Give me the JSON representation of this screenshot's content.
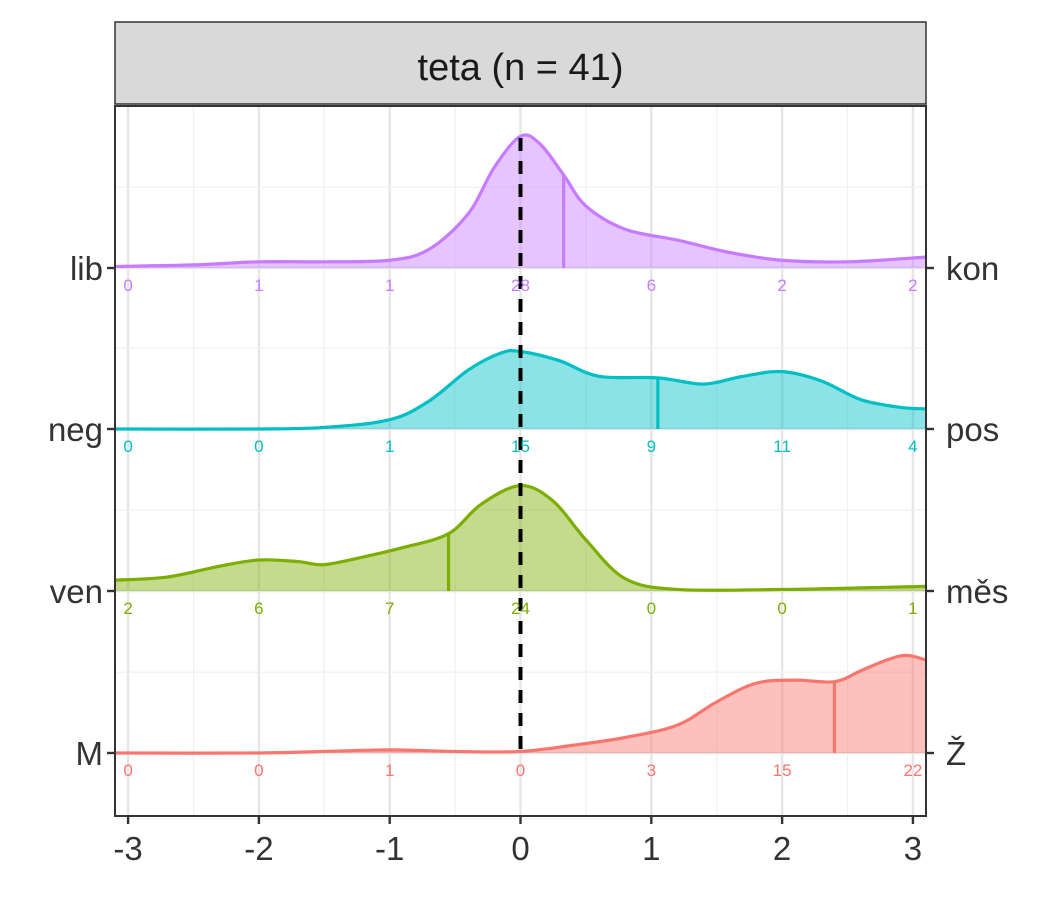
{
  "panel": {
    "title": "teta (n = 41)"
  },
  "chart_data": {
    "type": "area",
    "title": "",
    "xlabel": "",
    "ylabel": "",
    "xlim": [
      -3.1,
      3.1
    ],
    "x_ticks": [
      -3,
      -2,
      -1,
      0,
      1,
      2,
      3
    ],
    "x_tick_labels": [
      "-3",
      "-2",
      "-1",
      "0",
      "1",
      "2",
      "3"
    ],
    "count_positions": [
      -3,
      -2,
      -1,
      0,
      1,
      2,
      3
    ],
    "reference_line_x": 0,
    "grid": true,
    "series": [
      {
        "left_label": "lib",
        "right_label": "kon",
        "color": "#C77CFF",
        "counts": [
          "0",
          "1",
          "1",
          "28",
          "6",
          "2",
          "2"
        ],
        "marker_x": 0.33,
        "density": [
          [
            -3.1,
            0.01
          ],
          [
            -2.5,
            0.02
          ],
          [
            -2,
            0.04
          ],
          [
            -1.5,
            0.04
          ],
          [
            -1,
            0.05
          ],
          [
            -0.7,
            0.12
          ],
          [
            -0.4,
            0.35
          ],
          [
            -0.2,
            0.65
          ],
          [
            0,
            0.85
          ],
          [
            0.15,
            0.8
          ],
          [
            0.33,
            0.6
          ],
          [
            0.5,
            0.4
          ],
          [
            0.8,
            0.25
          ],
          [
            1.2,
            0.18
          ],
          [
            1.6,
            0.1
          ],
          [
            2,
            0.05
          ],
          [
            2.5,
            0.04
          ],
          [
            3.1,
            0.07
          ]
        ]
      },
      {
        "left_label": "neg",
        "right_label": "pos",
        "color": "#00BFC4",
        "counts": [
          "0",
          "0",
          "1",
          "15",
          "9",
          "11",
          "4"
        ],
        "marker_x": 1.05,
        "density": [
          [
            -3.1,
            0.0
          ],
          [
            -2,
            0.0
          ],
          [
            -1.5,
            0.01
          ],
          [
            -1,
            0.06
          ],
          [
            -0.7,
            0.18
          ],
          [
            -0.4,
            0.38
          ],
          [
            -0.15,
            0.49
          ],
          [
            0,
            0.5
          ],
          [
            0.3,
            0.44
          ],
          [
            0.6,
            0.34
          ],
          [
            1.05,
            0.33
          ],
          [
            1.4,
            0.29
          ],
          [
            1.7,
            0.34
          ],
          [
            2,
            0.37
          ],
          [
            2.3,
            0.31
          ],
          [
            2.6,
            0.19
          ],
          [
            2.9,
            0.14
          ],
          [
            3.1,
            0.13
          ]
        ]
      },
      {
        "left_label": "ven",
        "right_label": "měs",
        "color": "#7CAE00",
        "counts": [
          "2",
          "6",
          "7",
          "24",
          "0",
          "0",
          "1"
        ],
        "marker_x": -0.55,
        "density": [
          [
            -3.1,
            0.07
          ],
          [
            -2.7,
            0.09
          ],
          [
            -2.3,
            0.16
          ],
          [
            -2,
            0.2
          ],
          [
            -1.7,
            0.19
          ],
          [
            -1.5,
            0.17
          ],
          [
            -1.2,
            0.22
          ],
          [
            -0.9,
            0.28
          ],
          [
            -0.55,
            0.37
          ],
          [
            -0.3,
            0.56
          ],
          [
            0,
            0.68
          ],
          [
            0.25,
            0.58
          ],
          [
            0.5,
            0.33
          ],
          [
            0.8,
            0.08
          ],
          [
            1.2,
            0.01
          ],
          [
            2,
            0.01
          ],
          [
            2.6,
            0.02
          ],
          [
            3.1,
            0.03
          ]
        ]
      },
      {
        "left_label": "M",
        "right_label": "Ž",
        "color": "#F8766D",
        "counts": [
          "0",
          "0",
          "1",
          "0",
          "3",
          "15",
          "22"
        ],
        "marker_x": 2.4,
        "density": [
          [
            -3.1,
            0.0
          ],
          [
            -2,
            0.0
          ],
          [
            -1.5,
            0.01
          ],
          [
            -1,
            0.02
          ],
          [
            -0.5,
            0.01
          ],
          [
            0,
            0.01
          ],
          [
            0.4,
            0.05
          ],
          [
            0.8,
            0.1
          ],
          [
            1.2,
            0.18
          ],
          [
            1.5,
            0.33
          ],
          [
            1.8,
            0.45
          ],
          [
            2.1,
            0.47
          ],
          [
            2.4,
            0.46
          ],
          [
            2.6,
            0.53
          ],
          [
            2.8,
            0.6
          ],
          [
            2.95,
            0.63
          ],
          [
            3.1,
            0.6
          ]
        ]
      }
    ]
  }
}
